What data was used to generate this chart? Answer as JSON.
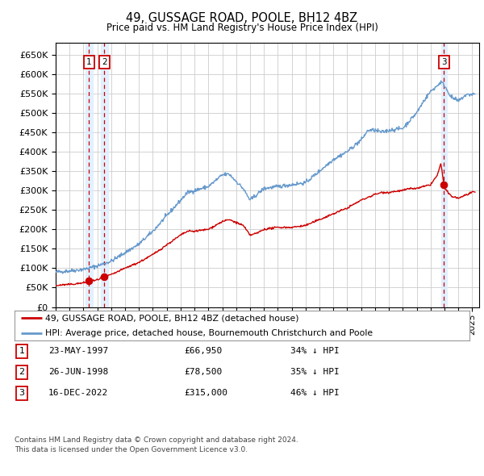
{
  "title": "49, GUSSAGE ROAD, POOLE, BH12 4BZ",
  "subtitle": "Price paid vs. HM Land Registry's House Price Index (HPI)",
  "legend_line1": "49, GUSSAGE ROAD, POOLE, BH12 4BZ (detached house)",
  "legend_line2": "HPI: Average price, detached house, Bournemouth Christchurch and Poole",
  "transactions": [
    {
      "num": 1,
      "date_label": "23-MAY-1997",
      "date_year": 1997.39,
      "price": 66950,
      "hpi_pct": "34% ↓ HPI"
    },
    {
      "num": 2,
      "date_label": "26-JUN-1998",
      "date_year": 1998.49,
      "price": 78500,
      "hpi_pct": "35% ↓ HPI"
    },
    {
      "num": 3,
      "date_label": "16-DEC-2022",
      "date_year": 2022.96,
      "price": 315000,
      "hpi_pct": "46% ↓ HPI"
    }
  ],
  "footnote1": "Contains HM Land Registry data © Crown copyright and database right 2024.",
  "footnote2": "This data is licensed under the Open Government Licence v3.0.",
  "red_color": "#cc0000",
  "blue_color": "#6699cc",
  "background_color": "#ffffff",
  "grid_color": "#cccccc",
  "highlight_color": "#ddeeff",
  "ylim": [
    0,
    680000
  ],
  "xlim_start": 1995.0,
  "xlim_end": 2025.5
}
